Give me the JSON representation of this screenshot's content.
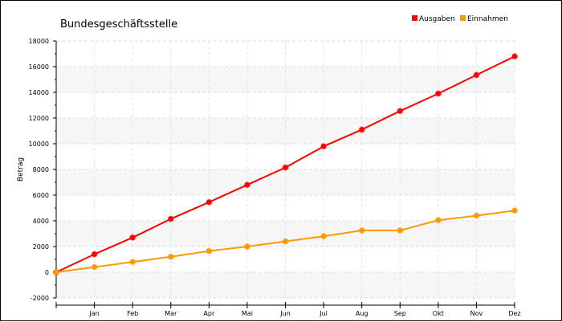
{
  "chart_data": {
    "type": "line",
    "title": "Bundesgeschäftsstelle",
    "ylabel": "Betrag",
    "xlabel": "",
    "categories": [
      "",
      "Jan",
      "Feb",
      "Mar",
      "Apr",
      "Mai",
      "Jun",
      "Jul",
      "Aug",
      "Sep",
      "Okt",
      "Nov",
      "Dez"
    ],
    "ylim": [
      -2000,
      18000
    ],
    "yticks": [
      -2000,
      0,
      2000,
      4000,
      6000,
      8000,
      10000,
      12000,
      14000,
      16000,
      18000
    ],
    "ytick_labels": [
      "-2000",
      "0",
      "2000",
      "4000",
      "6000",
      "8000",
      "10000",
      "12000",
      "14000",
      "16000",
      "18000"
    ],
    "grid": true,
    "legend_position": "top-right",
    "series": [
      {
        "name": "Ausgaben",
        "color": "#ff0000",
        "values": [
          0,
          1400,
          2700,
          4150,
          5450,
          6800,
          8150,
          9800,
          11100,
          12550,
          13900,
          15350,
          16800
        ]
      },
      {
        "name": "Einnahmen",
        "color": "#ff9900",
        "values": [
          0,
          400,
          800,
          1200,
          1650,
          2000,
          2400,
          2800,
          3250,
          3250,
          4050,
          4400,
          4800
        ]
      }
    ]
  }
}
